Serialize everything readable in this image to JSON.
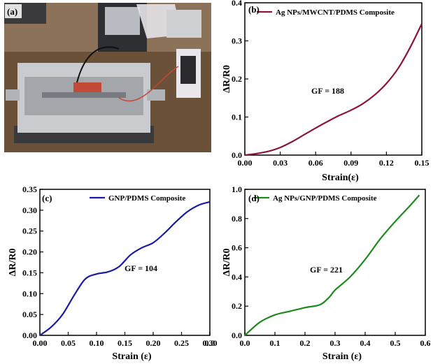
{
  "photo": {
    "panel_label": "(a)",
    "colors": {
      "bench": "#6b5138",
      "frame": "#c9cbcf",
      "shadow": "#3a3a3c",
      "clip": "#c24a36",
      "wire": "#111111",
      "case": "#e8e6ea"
    }
  },
  "chart_data": [
    {
      "type": "line",
      "panel_label": "(b)",
      "xlabel": "Strain(ε)",
      "ylabel": "ΔR/R0",
      "xlim": [
        0,
        0.15
      ],
      "ylim": [
        0,
        0.4
      ],
      "xticks": [
        "0.00",
        "0.03",
        "0.06",
        "0.09",
        "0.12",
        "0.15"
      ],
      "yticks": [
        "0.0",
        "0.1",
        "0.2",
        "0.3",
        "0.4"
      ],
      "legend_placement": "top",
      "annotation": "GF = 188",
      "series": [
        {
          "name": "Ag NPs/MWCNT/PDMS Composite",
          "color": "#8b1538",
          "x": [
            0,
            0.01,
            0.02,
            0.03,
            0.04,
            0.05,
            0.06,
            0.07,
            0.08,
            0.09,
            0.1,
            0.11,
            0.12,
            0.13,
            0.14,
            0.15
          ],
          "y": [
            0,
            0.004,
            0.01,
            0.02,
            0.035,
            0.053,
            0.071,
            0.088,
            0.104,
            0.118,
            0.135,
            0.158,
            0.188,
            0.228,
            0.282,
            0.345
          ]
        }
      ]
    },
    {
      "type": "line",
      "panel_label": "(c)",
      "xlabel": "Strain (ε)",
      "ylabel": "ΔR/R0",
      "xlim": [
        0,
        0.3
      ],
      "ylim": [
        0,
        0.35
      ],
      "xticks": [
        "0.00",
        "0.05",
        "0.10",
        "0.15",
        "0.20",
        "0.25",
        "0.30",
        "0.3"
      ],
      "yticks": [
        "0.00",
        "0.05",
        "0.10",
        "0.15",
        "0.20",
        "0.25",
        "0.30",
        "0.35"
      ],
      "legend_placement": "top-right",
      "annotation": "GF = 104",
      "series": [
        {
          "name": "GNP/PDMS Composite",
          "color": "#1a1aa6",
          "x": [
            0,
            0.02,
            0.04,
            0.06,
            0.08,
            0.1,
            0.12,
            0.14,
            0.16,
            0.18,
            0.2,
            0.22,
            0.24,
            0.26,
            0.28,
            0.3
          ],
          "y": [
            0,
            0.02,
            0.05,
            0.095,
            0.135,
            0.147,
            0.152,
            0.165,
            0.193,
            0.21,
            0.222,
            0.245,
            0.272,
            0.296,
            0.312,
            0.32
          ]
        }
      ]
    },
    {
      "type": "line",
      "panel_label": "(d)",
      "xlabel": "Strain (ε)",
      "ylabel": "ΔR/R0",
      "xlim": [
        0,
        0.6
      ],
      "ylim": [
        0,
        1.0
      ],
      "xticks": [
        "0.0",
        "0.1",
        "0.2",
        "0.3",
        "0.4",
        "0.5",
        "0.6"
      ],
      "yticks": [
        "0.0",
        "0.2",
        "0.4",
        "0.6",
        "0.8",
        "1.0"
      ],
      "legend_placement": "top",
      "annotation": "GF = 221",
      "series": [
        {
          "name": "Ag NPs/GNP/PDMS Composite",
          "color": "#1f8a1f",
          "x": [
            0,
            0.05,
            0.1,
            0.15,
            0.2,
            0.25,
            0.28,
            0.3,
            0.35,
            0.4,
            0.45,
            0.5,
            0.55,
            0.58
          ],
          "y": [
            0,
            0.09,
            0.14,
            0.165,
            0.19,
            0.21,
            0.26,
            0.31,
            0.4,
            0.52,
            0.66,
            0.78,
            0.89,
            0.96
          ]
        }
      ]
    }
  ]
}
